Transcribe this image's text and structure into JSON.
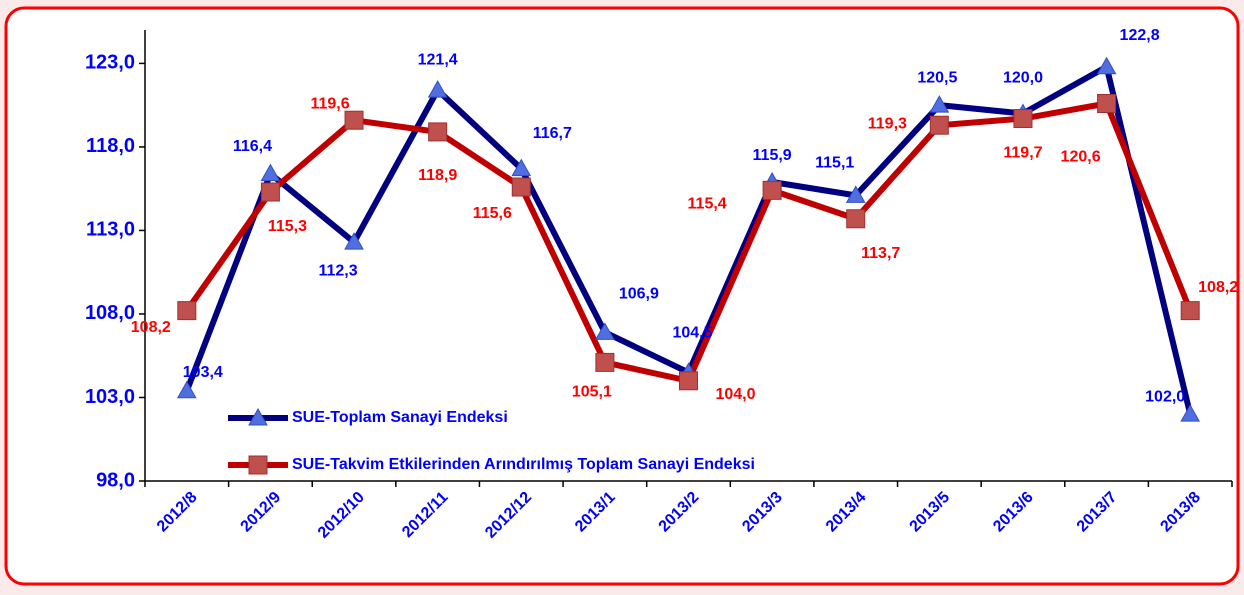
{
  "chart_data": {
    "type": "line",
    "categories": [
      "2012/8",
      "2012/9",
      "2012/10",
      "2012/11",
      "2012/12",
      "2013/1",
      "2013/2",
      "2013/3",
      "2013/4",
      "2013/5",
      "2013/6",
      "2013/7",
      "2013/8"
    ],
    "series": [
      {
        "name": "SUE-Toplam Sanayi Endeksi",
        "color": "#000080",
        "marker": "triangle",
        "values": [
          103.4,
          116.4,
          112.3,
          121.4,
          116.7,
          106.9,
          104.5,
          115.9,
          115.1,
          120.5,
          120.0,
          122.8,
          102.0
        ],
        "value_labels": [
          "103,4",
          "116,4",
          "112,3",
          "121,4",
          "116,7",
          "106,9",
          "104,5",
          "115,9",
          "115,1",
          "120,5",
          "120,0",
          "122,8",
          "102,0"
        ]
      },
      {
        "name": "SUE-Takvim Etkilerinden Arındırılmış Toplam Sanayi Endeksi",
        "color": "#c00000",
        "marker": "square",
        "values": [
          108.2,
          115.3,
          119.6,
          118.9,
          115.6,
          105.1,
          104.0,
          115.4,
          113.7,
          119.3,
          119.7,
          120.6,
          108.2
        ],
        "value_labels": [
          "108,2",
          "115,3",
          "119,6",
          "118,9",
          "115,6",
          "105,1",
          "104,0",
          "115,4",
          "113,7",
          "119,3",
          "119,7",
          "120,6",
          "108,2"
        ]
      }
    ],
    "ylim": [
      98,
      125
    ],
    "yticks": [
      {
        "value": 98,
        "label": "98,0"
      },
      {
        "value": 103,
        "label": "103,0"
      },
      {
        "value": 108,
        "label": "108,0"
      },
      {
        "value": 113,
        "label": "113,0"
      },
      {
        "value": 118,
        "label": "118,0"
      },
      {
        "value": 123,
        "label": "123,0"
      }
    ],
    "grid": false
  }
}
